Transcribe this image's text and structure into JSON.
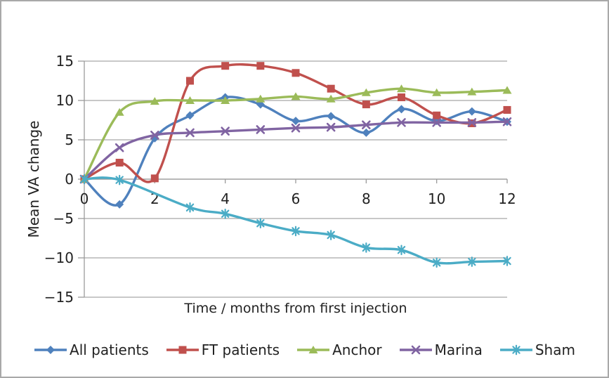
{
  "window": {
    "background_color": "#FFFFFF",
    "border_color": "#A9A9A9"
  },
  "chart_data": {
    "type": "line",
    "title": "",
    "xlabel": "Time / months from first injection",
    "ylabel": "Mean VA change",
    "xlim": [
      0,
      12
    ],
    "ylim": [
      -15,
      15
    ],
    "grid": "horizontal",
    "smoothed": true,
    "legend_position": "bottom",
    "grid_color": "#A6A6A6",
    "axis_color": "#9B9B9B",
    "text_color": "#222222",
    "x": [
      0,
      1,
      2,
      3,
      4,
      5,
      6,
      7,
      8,
      9,
      10,
      11,
      12
    ],
    "x_ticks": [
      0,
      2,
      4,
      6,
      8,
      10,
      12
    ],
    "x_tick_labels": [
      "0",
      "2",
      "4",
      "6",
      "8",
      "10",
      "12"
    ],
    "y_ticks": [
      15,
      10,
      5,
      0,
      -5,
      -10,
      -15
    ],
    "y_tick_labels": [
      "15",
      "10",
      "5",
      "0",
      "−5",
      "−10",
      "−15"
    ],
    "series": [
      {
        "name": "All patients",
        "color": "#4F81BD",
        "marker": "diamond",
        "values": [
          0,
          -3.2,
          5.2,
          8.1,
          10.4,
          9.5,
          7.4,
          8.0,
          5.9,
          8.9,
          7.4,
          8.6,
          7.3
        ]
      },
      {
        "name": "FT patients",
        "color": "#C0504D",
        "marker": "square",
        "values": [
          0,
          2.1,
          0.1,
          12.5,
          14.4,
          14.4,
          13.5,
          11.5,
          9.5,
          10.4,
          8.1,
          7.1,
          8.8
        ]
      },
      {
        "name": "Anchor",
        "color": "#9BBB59",
        "marker": "triangle",
        "values": [
          0,
          8.5,
          9.9,
          10.0,
          10.0,
          10.2,
          10.5,
          10.2,
          11.0,
          11.5,
          11.0,
          11.1,
          11.3
        ]
      },
      {
        "name": "Marina",
        "color": "#8064A2",
        "marker": "x",
        "values": [
          0,
          4.0,
          5.6,
          5.9,
          6.1,
          6.3,
          6.5,
          6.6,
          6.9,
          7.2,
          7.2,
          7.2,
          7.3
        ]
      },
      {
        "name": "Sham",
        "color": "#4BACC6",
        "marker": "asterisk",
        "values": [
          0,
          -0.1,
          null,
          -3.6,
          -4.4,
          -5.6,
          -6.6,
          -7.1,
          -8.7,
          -9.0,
          -10.6,
          -10.5,
          -10.4
        ]
      }
    ]
  }
}
